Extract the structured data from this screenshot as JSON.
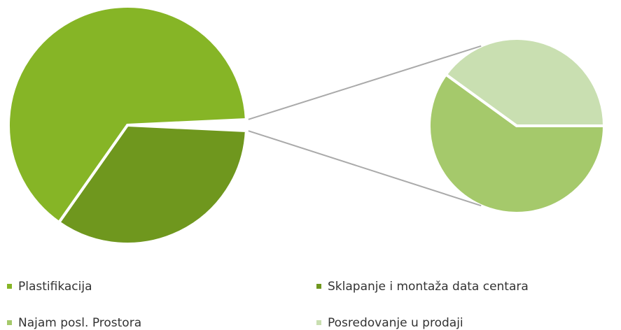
{
  "chart_data": {
    "type": "pie-of-pie",
    "categories": [
      "Plastifikacija",
      "Sklapanje i montaža data centara",
      "Najam posl. Prostora",
      "Posredovanje u prodaji"
    ],
    "values": [
      64.5,
      34,
      0.9,
      0.6
    ],
    "colors": [
      "#86b526",
      "#6f971e",
      "#a5c96b",
      "#c9dfb1"
    ],
    "secondary_count": 2
  }
}
